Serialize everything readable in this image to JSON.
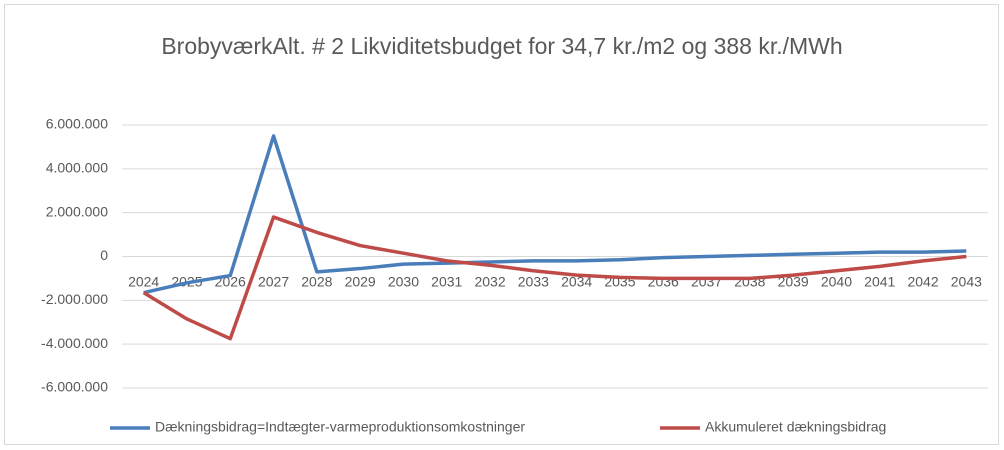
{
  "chart_data": {
    "type": "line",
    "title": "BrobyværkAlt. # 2 Likviditetsbudget  for 34,7 kr./m2 og 388 kr./MWh",
    "categories": [
      "2024",
      "2025",
      "2026",
      "2027",
      "2028",
      "2029",
      "2030",
      "2031",
      "2032",
      "2033",
      "2034",
      "2035",
      "2036",
      "2037",
      "2038",
      "2039",
      "2040",
      "2041",
      "2042",
      "2043"
    ],
    "series": [
      {
        "name": "Dækningsbidrag=Indtægter-varmeproduktionsomkostninger",
        "color": "#4a7ebb",
        "values": [
          -1650000,
          -1200000,
          -870000,
          5500000,
          -700000,
          -550000,
          -350000,
          -300000,
          -250000,
          -200000,
          -200000,
          -150000,
          -50000,
          0,
          50000,
          100000,
          150000,
          200000,
          200000,
          250000
        ]
      },
      {
        "name": "Akkumuleret dækningsbidrag",
        "color": "#be4b48",
        "values": [
          -1650000,
          -2850000,
          -3750000,
          1800000,
          1100000,
          500000,
          150000,
          -200000,
          -400000,
          -650000,
          -850000,
          -950000,
          -1000000,
          -1000000,
          -1000000,
          -850000,
          -650000,
          -450000,
          -200000,
          0
        ]
      }
    ],
    "ylim": [
      -6000000,
      6000000
    ],
    "yticks": [
      {
        "value": -6000000,
        "label": "-6.000.000"
      },
      {
        "value": -4000000,
        "label": "-4.000.000"
      },
      {
        "value": -2000000,
        "label": "-2.000.000"
      },
      0,
      {
        "value": 2000000,
        "label": "2.000.000"
      },
      {
        "value": 4000000,
        "label": "4.000.000"
      },
      {
        "value": 6000000,
        "label": "6.000.000"
      }
    ],
    "grid": true,
    "legend": "bottom"
  }
}
